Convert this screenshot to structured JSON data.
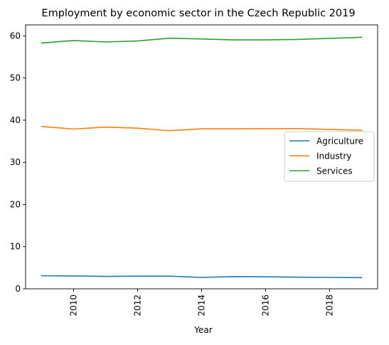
{
  "chart_data": {
    "type": "line",
    "title": "Employment by economic sector in the Czech Republic 2019",
    "xlabel": "Year",
    "ylabel": "",
    "x": [
      2009,
      2010,
      2011,
      2012,
      2013,
      2014,
      2015,
      2016,
      2017,
      2018,
      2019
    ],
    "xlim": [
      2008.5,
      2019.5
    ],
    "ylim": [
      0,
      62.6
    ],
    "x_ticks": [
      2010,
      2012,
      2014,
      2016,
      2018
    ],
    "y_ticks": [
      0,
      10,
      20,
      30,
      40,
      50,
      60
    ],
    "legend_position": "center-right",
    "grid": false,
    "series": [
      {
        "name": "Agriculture",
        "color": "#1f77b4",
        "values": [
          3.1,
          3.05,
          2.95,
          3.0,
          3.0,
          2.7,
          2.9,
          2.85,
          2.75,
          2.7,
          2.65
        ]
      },
      {
        "name": "Industry",
        "color": "#ff7f0e",
        "values": [
          38.5,
          37.9,
          38.35,
          38.1,
          37.5,
          37.95,
          37.95,
          38.0,
          38.0,
          37.8,
          37.6
        ]
      },
      {
        "name": "Services",
        "color": "#2ca02c",
        "values": [
          58.3,
          58.9,
          58.55,
          58.8,
          59.45,
          59.25,
          59.05,
          59.05,
          59.15,
          59.4,
          59.65
        ]
      }
    ]
  }
}
